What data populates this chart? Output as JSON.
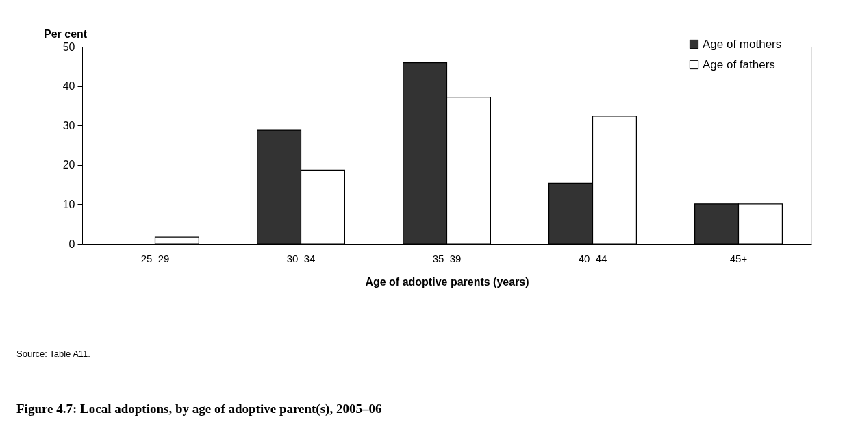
{
  "chart_data": {
    "type": "bar",
    "title": "Figure 4.7: Local adoptions, by age of adoptive parent(s), 2005–06",
    "xlabel": "Age of adoptive parents (years)",
    "ylabel": "Per cent",
    "categories": [
      "25–29",
      "30–34",
      "35–39",
      "40–44",
      "45+"
    ],
    "series": [
      {
        "name": "Age of mothers",
        "color": "#333333",
        "values": [
          0,
          28.8,
          45.9,
          15.4,
          10.1
        ]
      },
      {
        "name": "Age of fathers",
        "color": "#ffffff",
        "values": [
          1.7,
          18.7,
          37.2,
          32.3,
          10.1
        ]
      }
    ],
    "ylim": [
      0,
      50
    ],
    "yticks": [
      0,
      10,
      20,
      30,
      40,
      50
    ],
    "grid": false,
    "legend": "top right",
    "annotations": [
      "Source: Table A11."
    ]
  }
}
